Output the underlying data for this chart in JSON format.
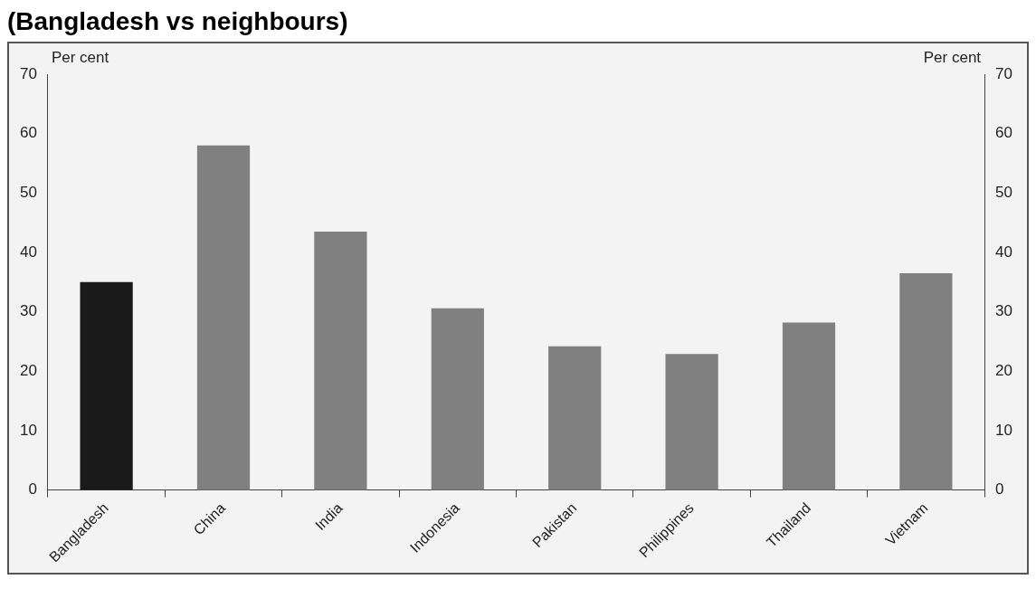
{
  "chart_data": {
    "type": "bar",
    "title": "(Bangladesh vs neighbours)",
    "categories": [
      "Bangladesh",
      "China",
      "India",
      "Indonesia",
      "Pakistan",
      "Philippines",
      "Thailand",
      "Vietnam"
    ],
    "values": [
      35,
      58,
      43.5,
      30.6,
      24.2,
      22.9,
      28.2,
      36.5
    ],
    "colors": [
      "#1a1a1a",
      "#808080",
      "#808080",
      "#808080",
      "#808080",
      "#808080",
      "#808080",
      "#808080"
    ],
    "ylabel": "Per cent",
    "y2label": "Per cent",
    "ylim": [
      0,
      70
    ],
    "yticks": [
      0,
      10,
      20,
      30,
      40,
      50,
      60,
      70
    ],
    "y2lim": [
      0,
      70
    ],
    "y2ticks": [
      0,
      10,
      20,
      30,
      40,
      50,
      60,
      70
    ],
    "grid": false,
    "legend": false
  }
}
